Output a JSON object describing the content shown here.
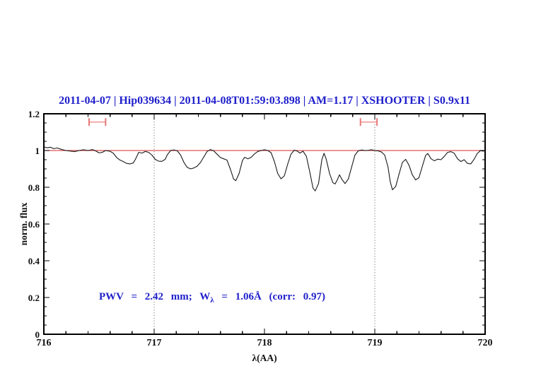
{
  "title": "2011-04-07 | Hip039634 | 2011-04-08T01:59:03.898 | AM=1.17 | XSHOOTER | S0.9x11",
  "annotation": {
    "pre": "PWV = 2.42 mm; W",
    "sub": "λ",
    "post": " = 1.06Å (corr: 0.97)"
  },
  "axes": {
    "xlabel": "λ(AA)",
    "ylabel": "norm. flux",
    "x_ticks": [
      {
        "value": 716,
        "label": "716"
      },
      {
        "value": 717,
        "label": "717"
      },
      {
        "value": 718,
        "label": "718"
      },
      {
        "value": 719,
        "label": "719"
      },
      {
        "value": 720,
        "label": "720"
      }
    ],
    "y_ticks": [
      {
        "value": 0,
        "label": "0"
      },
      {
        "value": 0.2,
        "label": "0.2"
      },
      {
        "value": 0.4,
        "label": "0.4"
      },
      {
        "value": 0.6,
        "label": "0.6"
      },
      {
        "value": 0.8,
        "label": "0.8"
      },
      {
        "value": 1,
        "label": "1"
      },
      {
        "value": 1.2,
        "label": "1.2"
      }
    ]
  },
  "colors": {
    "text_blue": "#2020cc",
    "continuum_red": "#e05555",
    "marker_bar_pink": "#f2a6a6",
    "marker_cap_pink": "#e87878",
    "spectrum_black": "#1a1a1a",
    "dotted_gray": "#444444",
    "frame_black": "#000000"
  },
  "chart_data": {
    "type": "line",
    "title": "2011-04-07 | Hip039634 | 2011-04-08T01:59:03.898 | AM=1.17 | XSHOOTER | S0.9x11",
    "xlabel": "λ(AA)",
    "ylabel": "norm. flux",
    "xlim": [
      716,
      720
    ],
    "ylim": [
      0,
      1.2
    ],
    "x_major_tick": 1,
    "x_minor_tick": 0.2,
    "y_major_tick": 0.2,
    "y_minor_tick": 0.05,
    "grid": false,
    "legend": "none",
    "vlines_dotted_x": [
      717,
      719
    ],
    "continuum_reference_y": 1.0,
    "band_markers": [
      {
        "x_min": 716.41,
        "x_max": 716.56,
        "y": 1.155
      },
      {
        "x_min": 718.87,
        "x_max": 719.02,
        "y": 1.155
      }
    ],
    "annotation_text": "PWV = 2.42 mm; Wλ = 1.06Å (corr: 0.97)",
    "series": [
      {
        "name": "normalized spectrum",
        "points": [
          [
            716.0,
            1.02
          ],
          [
            716.03,
            1.015
          ],
          [
            716.06,
            1.018
          ],
          [
            716.09,
            1.01
          ],
          [
            716.12,
            1.014
          ],
          [
            716.16,
            1.006
          ],
          [
            716.2,
            1.0
          ],
          [
            716.24,
            0.997
          ],
          [
            716.28,
            0.994
          ],
          [
            716.32,
            1.0
          ],
          [
            716.36,
            1.004
          ],
          [
            716.4,
            1.0
          ],
          [
            716.44,
            1.005
          ],
          [
            716.47,
            0.998
          ],
          [
            716.5,
            0.987
          ],
          [
            716.53,
            0.99
          ],
          [
            716.56,
            1.0
          ],
          [
            716.6,
            0.996
          ],
          [
            716.63,
            0.985
          ],
          [
            716.66,
            0.962
          ],
          [
            716.69,
            0.948
          ],
          [
            716.72,
            0.94
          ],
          [
            716.75,
            0.93
          ],
          [
            716.78,
            0.927
          ],
          [
            716.81,
            0.932
          ],
          [
            716.83,
            0.952
          ],
          [
            716.86,
            0.99
          ],
          [
            716.89,
            0.986
          ],
          [
            716.92,
            0.995
          ],
          [
            716.95,
            0.99
          ],
          [
            716.98,
            0.975
          ],
          [
            717.01,
            0.952
          ],
          [
            717.04,
            0.942
          ],
          [
            717.07,
            0.941
          ],
          [
            717.1,
            0.952
          ],
          [
            717.12,
            0.978
          ],
          [
            717.15,
            1.0
          ],
          [
            717.18,
            1.003
          ],
          [
            717.21,
            0.998
          ],
          [
            717.24,
            0.975
          ],
          [
            717.27,
            0.935
          ],
          [
            717.3,
            0.908
          ],
          [
            717.33,
            0.9
          ],
          [
            717.36,
            0.905
          ],
          [
            717.39,
            0.915
          ],
          [
            717.42,
            0.935
          ],
          [
            717.45,
            0.965
          ],
          [
            717.48,
            0.995
          ],
          [
            717.51,
            1.005
          ],
          [
            717.54,
            0.998
          ],
          [
            717.57,
            0.98
          ],
          [
            717.6,
            0.962
          ],
          [
            717.63,
            0.955
          ],
          [
            717.66,
            0.948
          ],
          [
            717.69,
            0.9
          ],
          [
            717.72,
            0.845
          ],
          [
            717.74,
            0.836
          ],
          [
            717.77,
            0.875
          ],
          [
            717.8,
            0.945
          ],
          [
            717.82,
            0.963
          ],
          [
            717.85,
            0.955
          ],
          [
            717.88,
            0.963
          ],
          [
            717.91,
            0.982
          ],
          [
            717.94,
            0.995
          ],
          [
            717.97,
            1.0
          ],
          [
            718.0,
            1.004
          ],
          [
            718.03,
            1.0
          ],
          [
            718.06,
            0.988
          ],
          [
            718.09,
            0.94
          ],
          [
            718.12,
            0.875
          ],
          [
            718.15,
            0.846
          ],
          [
            718.18,
            0.862
          ],
          [
            718.21,
            0.925
          ],
          [
            718.24,
            0.98
          ],
          [
            718.27,
            1.002
          ],
          [
            718.3,
            0.996
          ],
          [
            718.32,
            0.986
          ],
          [
            718.35,
            0.996
          ],
          [
            718.38,
            0.968
          ],
          [
            718.41,
            0.885
          ],
          [
            718.44,
            0.795
          ],
          [
            718.46,
            0.78
          ],
          [
            718.49,
            0.82
          ],
          [
            718.52,
            0.95
          ],
          [
            718.54,
            0.985
          ],
          [
            718.56,
            0.952
          ],
          [
            718.59,
            0.875
          ],
          [
            718.62,
            0.825
          ],
          [
            718.64,
            0.818
          ],
          [
            718.66,
            0.84
          ],
          [
            718.68,
            0.868
          ],
          [
            718.7,
            0.845
          ],
          [
            718.73,
            0.82
          ],
          [
            718.76,
            0.845
          ],
          [
            718.79,
            0.91
          ],
          [
            718.82,
            0.975
          ],
          [
            718.85,
            0.998
          ],
          [
            718.88,
            1.003
          ],
          [
            718.91,
            1.0
          ],
          [
            718.94,
            1.001
          ],
          [
            718.97,
            1.004
          ],
          [
            719.0,
            1.0
          ],
          [
            719.03,
            0.998
          ],
          [
            719.06,
            0.992
          ],
          [
            719.09,
            0.975
          ],
          [
            719.12,
            0.91
          ],
          [
            719.14,
            0.83
          ],
          [
            719.16,
            0.786
          ],
          [
            719.19,
            0.805
          ],
          [
            719.22,
            0.872
          ],
          [
            719.25,
            0.935
          ],
          [
            719.28,
            0.952
          ],
          [
            719.31,
            0.92
          ],
          [
            719.34,
            0.868
          ],
          [
            719.37,
            0.84
          ],
          [
            719.4,
            0.852
          ],
          [
            719.43,
            0.912
          ],
          [
            719.46,
            0.972
          ],
          [
            719.48,
            0.984
          ],
          [
            719.51,
            0.955
          ],
          [
            719.54,
            0.944
          ],
          [
            719.57,
            0.953
          ],
          [
            719.6,
            0.95
          ],
          [
            719.63,
            0.968
          ],
          [
            719.66,
            0.99
          ],
          [
            719.69,
            0.994
          ],
          [
            719.72,
            0.985
          ],
          [
            719.75,
            0.955
          ],
          [
            719.78,
            0.94
          ],
          [
            719.81,
            0.95
          ],
          [
            719.84,
            0.93
          ],
          [
            719.87,
            0.927
          ],
          [
            719.9,
            0.952
          ],
          [
            719.93,
            0.985
          ],
          [
            719.96,
            1.0
          ],
          [
            719.98,
            0.996
          ],
          [
            720.0,
            1.0
          ]
        ]
      }
    ]
  }
}
